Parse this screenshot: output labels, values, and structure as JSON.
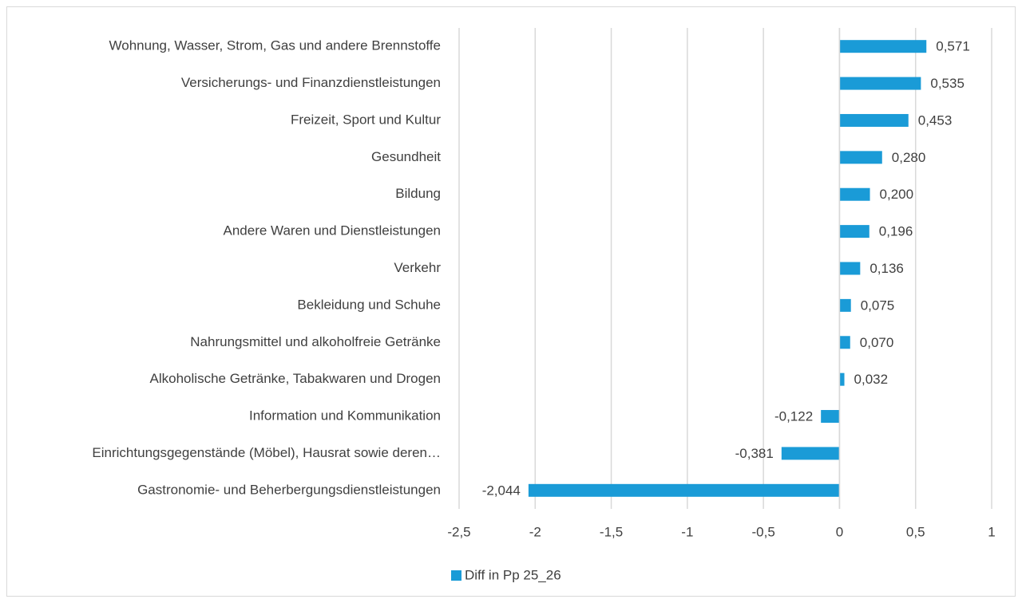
{
  "chart_data": {
    "type": "bar",
    "orientation": "horizontal",
    "categories": [
      "Wohnung, Wasser, Strom, Gas und andere Brennstoffe",
      "Versicherungs- und Finanzdienstleistungen",
      "Freizeit, Sport und Kultur",
      "Gesundheit",
      "Bildung",
      "Andere Waren und Dienstleistungen",
      "Verkehr",
      "Bekleidung und Schuhe",
      "Nahrungsmittel und alkoholfreie Getränke",
      "Alkoholische Getränke, Tabakwaren und Drogen",
      "Information und Kommunikation",
      "Einrichtungsgegenstände (Möbel), Hausrat sowie deren…",
      "Gastronomie- und Beherbergungsdienstleistungen"
    ],
    "series": [
      {
        "name": "Diff in Pp 25_26",
        "color": "#1a9bd7",
        "values": [
          0.571,
          0.535,
          0.453,
          0.28,
          0.2,
          0.196,
          0.136,
          0.075,
          0.07,
          0.032,
          -0.122,
          -0.381,
          -2.044
        ],
        "value_labels": [
          "0,571",
          "0,535",
          "0,453",
          "0,280",
          "0,200",
          "0,196",
          "0,136",
          "0,075",
          "0,070",
          "0,032",
          "-0,122",
          "-0,381",
          "-2,044"
        ]
      }
    ],
    "xlim": [
      -2.5,
      1
    ],
    "xticks": [
      {
        "value": -2.5,
        "label": "-2,5"
      },
      -2,
      {
        "value": -1.5,
        "label": "-1,5"
      },
      -1,
      {
        "value": -0.5,
        "label": "-0,5"
      },
      0,
      {
        "value": 0.5,
        "label": "0,5"
      },
      1
    ],
    "grid": true,
    "legend": "bottom"
  }
}
